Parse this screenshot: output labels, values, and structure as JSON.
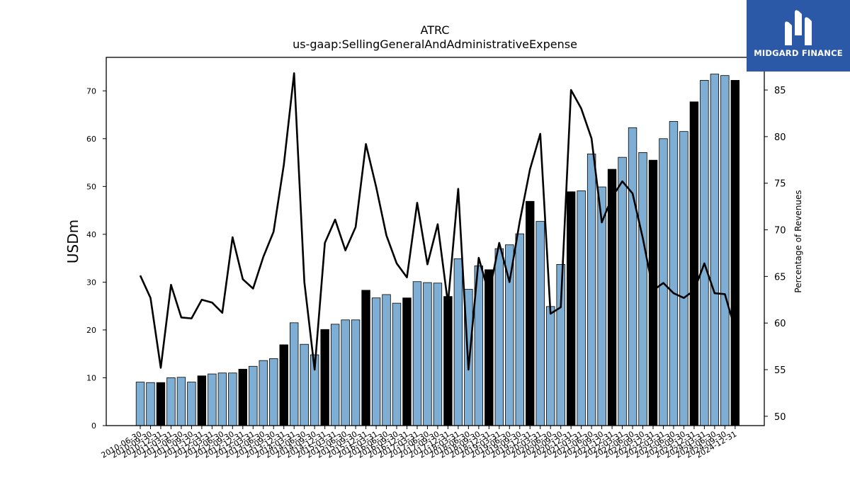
{
  "logo": {
    "text": "MIDGARD FINANCE",
    "color": "#2c58a8"
  },
  "chart_data": {
    "type": "bar",
    "title": "ATRC",
    "subtitle": "us-gaap:SellingGeneralAndAdministrativeExpense",
    "ylabel": "USDm",
    "y2label": "Percentage of Revenues",
    "ylim": [
      0,
      77
    ],
    "y2lim": [
      49.0,
      88.5
    ],
    "yticks": [
      0,
      10,
      20,
      30,
      40,
      50,
      60,
      70
    ],
    "y2ticks": [
      50,
      55,
      60,
      65,
      70,
      75,
      80,
      85
    ],
    "bar_color": "#7eaed3",
    "highlight_color": "#000000",
    "line_color": "#000000",
    "categories": [
      "2010-06-30",
      "2010-09-30",
      "2010-12-31",
      "2011-03-31",
      "2011-06-30",
      "2011-09-30",
      "2011-12-31",
      "2012-03-31",
      "2012-06-30",
      "2012-09-30",
      "2012-12-31",
      "2013-03-31",
      "2013-06-30",
      "2013-09-30",
      "2013-12-31",
      "2014-03-31",
      "2014-06-30",
      "2014-09-30",
      "2014-12-31",
      "2015-03-31",
      "2015-06-30",
      "2015-09-30",
      "2015-12-31",
      "2016-03-31",
      "2016-06-30",
      "2016-09-30",
      "2016-12-31",
      "2017-03-31",
      "2017-06-30",
      "2017-09-30",
      "2017-12-31",
      "2018-03-31",
      "2018-06-30",
      "2018-09-30",
      "2018-12-31",
      "2019-03-31",
      "2019-06-30",
      "2019-09-30",
      "2019-12-31",
      "2020-03-31",
      "2020-06-30",
      "2020-09-30",
      "2020-12-31",
      "2021-03-31",
      "2021-06-30",
      "2021-09-30",
      "2021-12-31",
      "2022-03-31",
      "2022-06-30",
      "2022-09-30",
      "2022-12-31",
      "2023-03-31",
      "2023-06-30",
      "2023-09-30",
      "2023-12-31",
      "2024-03-31",
      "2024-06-30",
      "2024-09-30",
      "2024-12-31"
    ],
    "series": [
      {
        "type": "bar",
        "values": [
          9.1,
          9.0,
          9.0,
          10.0,
          10.1,
          9.1,
          10.4,
          10.8,
          11.0,
          11.0,
          11.8,
          12.4,
          13.6,
          14.0,
          16.9,
          21.5,
          17.0,
          14.8,
          20.1,
          21.2,
          22.1,
          22.1,
          28.3,
          26.7,
          27.4,
          25.6,
          26.7,
          30.1,
          29.9,
          29.8,
          27.0,
          34.9,
          28.5,
          33.4,
          32.6,
          37.0,
          37.8,
          40.1,
          46.9,
          42.7,
          24.9,
          33.7,
          48.9,
          49.1,
          56.8,
          49.9,
          53.6,
          56.1,
          62.3,
          57.1,
          55.5,
          60.0,
          63.6,
          61.5,
          67.7,
          72.2,
          73.5,
          73.2,
          72.2
        ],
        "highlight": [
          2,
          6,
          10,
          14,
          18,
          22,
          26,
          30,
          34,
          38,
          42,
          46,
          50,
          54,
          58
        ]
      },
      {
        "type": "line",
        "axis": "right",
        "values": [
          65.1,
          62.7,
          55.2,
          64.1,
          60.6,
          60.5,
          62.5,
          62.2,
          61.1,
          69.2,
          64.7,
          63.7,
          67.1,
          69.8,
          77.0,
          86.8,
          64.4,
          55.0,
          68.6,
          71.1,
          67.8,
          70.3,
          79.2,
          74.6,
          69.4,
          66.4,
          64.9,
          72.9,
          66.3,
          70.6,
          62.1,
          74.4,
          55.0,
          67.0,
          63.1,
          68.6,
          64.4,
          70.9,
          76.5,
          80.3,
          61.0,
          61.7,
          85.0,
          83.0,
          79.8,
          70.8,
          73.5,
          75.2,
          73.9,
          69.1,
          63.5,
          64.3,
          63.2,
          62.7,
          63.5,
          66.4,
          63.2,
          63.1,
          59.3
        ]
      }
    ]
  }
}
